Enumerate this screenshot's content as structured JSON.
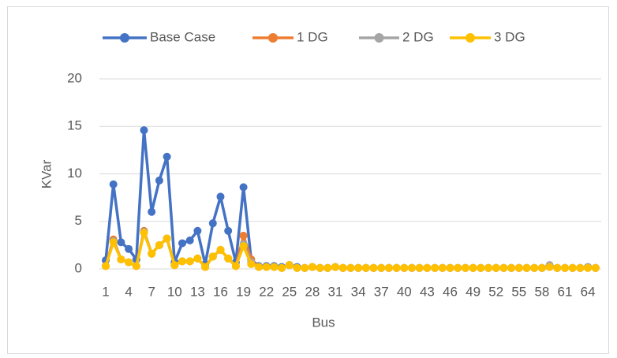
{
  "chart_data": {
    "type": "line",
    "x_label": "Bus",
    "y_label": "KVar",
    "categories": [
      1,
      null,
      null,
      4,
      null,
      null,
      7,
      null,
      null,
      10,
      null,
      null,
      13,
      null,
      null,
      16,
      null,
      null,
      19,
      null,
      null,
      22,
      null,
      null,
      25,
      null,
      null,
      28,
      null,
      null,
      31,
      null,
      null,
      34,
      null,
      null,
      37,
      null,
      null,
      40,
      null,
      null,
      43,
      null,
      null,
      46,
      null,
      null,
      49,
      null,
      null,
      52,
      null,
      null,
      55,
      null,
      null,
      58,
      null,
      null,
      61,
      null,
      null,
      64,
      null
    ],
    "ylim": [
      0,
      20
    ],
    "yticks": [
      0,
      5,
      10,
      15,
      20
    ],
    "grid": true,
    "legend": "top",
    "series": [
      {
        "name": "Base Case",
        "color": "#4472c4",
        "values": [
          0.9,
          8.9,
          2.8,
          2.1,
          1.0,
          14.6,
          6.0,
          9.3,
          11.8,
          0.7,
          2.7,
          3.0,
          4.0,
          0.5,
          4.8,
          7.6,
          4.0,
          0.7,
          8.6,
          1.0,
          0.3,
          0.3,
          0.3,
          0.2,
          0.4,
          0.2,
          0.1,
          0.2,
          0.1,
          0.1,
          0.2,
          0.1,
          0.1,
          0.1,
          0.1,
          0.1,
          0.1,
          0.1,
          0.1,
          0.1,
          0.1,
          0.1,
          0.1,
          0.1,
          0.1,
          0.1,
          0.1,
          0.1,
          0.1,
          0.1,
          0.1,
          0.1,
          0.1,
          0.1,
          0.1,
          0.1,
          0.1,
          0.1,
          0.3,
          0.1,
          0.1,
          0.1,
          0.1,
          0.2,
          0.1
        ]
      },
      {
        "name": "1 DG",
        "color": "#ed7d31",
        "values": [
          0.3,
          3.1,
          1.0,
          0.7,
          0.3,
          4.0,
          1.6,
          2.5,
          3.2,
          0.4,
          0.8,
          0.8,
          1.1,
          0.2,
          1.3,
          2.0,
          1.1,
          0.3,
          3.5,
          1.0,
          0.2,
          0.2,
          0.2,
          0.1,
          0.4,
          0.1,
          0.1,
          0.2,
          0.1,
          0.1,
          0.2,
          0.1,
          0.1,
          0.1,
          0.1,
          0.1,
          0.1,
          0.1,
          0.1,
          0.1,
          0.1,
          0.1,
          0.1,
          0.1,
          0.1,
          0.1,
          0.1,
          0.1,
          0.1,
          0.1,
          0.1,
          0.1,
          0.1,
          0.1,
          0.1,
          0.1,
          0.1,
          0.1,
          0.2,
          0.1,
          0.1,
          0.1,
          0.1,
          0.1,
          0.1
        ]
      },
      {
        "name": "2 DG",
        "color": "#a5a5a5",
        "values": [
          0.3,
          2.9,
          1.0,
          0.7,
          0.3,
          3.9,
          1.6,
          2.5,
          3.2,
          0.4,
          0.8,
          0.8,
          1.1,
          0.2,
          1.3,
          2.0,
          1.1,
          0.3,
          2.6,
          0.7,
          0.2,
          0.2,
          0.2,
          0.1,
          0.4,
          0.1,
          0.1,
          0.2,
          0.1,
          0.1,
          0.2,
          0.1,
          0.1,
          0.1,
          0.1,
          0.1,
          0.1,
          0.1,
          0.1,
          0.1,
          0.1,
          0.1,
          0.1,
          0.1,
          0.1,
          0.1,
          0.1,
          0.1,
          0.1,
          0.1,
          0.1,
          0.1,
          0.1,
          0.1,
          0.1,
          0.1,
          0.1,
          0.1,
          0.4,
          0.1,
          0.1,
          0.1,
          0.1,
          0.2,
          0.1
        ]
      },
      {
        "name": "3 DG",
        "color": "#ffc000",
        "values": [
          0.3,
          2.8,
          1.0,
          0.7,
          0.3,
          3.8,
          1.6,
          2.5,
          3.2,
          0.4,
          0.8,
          0.8,
          1.1,
          0.2,
          1.3,
          2.0,
          1.1,
          0.3,
          2.4,
          0.5,
          0.2,
          0.2,
          0.2,
          0.1,
          0.4,
          0.1,
          0.1,
          0.2,
          0.1,
          0.1,
          0.2,
          0.1,
          0.1,
          0.1,
          0.1,
          0.1,
          0.1,
          0.1,
          0.1,
          0.1,
          0.1,
          0.1,
          0.1,
          0.1,
          0.1,
          0.1,
          0.1,
          0.1,
          0.1,
          0.1,
          0.1,
          0.1,
          0.1,
          0.1,
          0.1,
          0.1,
          0.1,
          0.1,
          0.2,
          0.1,
          0.1,
          0.1,
          0.1,
          0.1,
          0.1
        ]
      }
    ]
  }
}
